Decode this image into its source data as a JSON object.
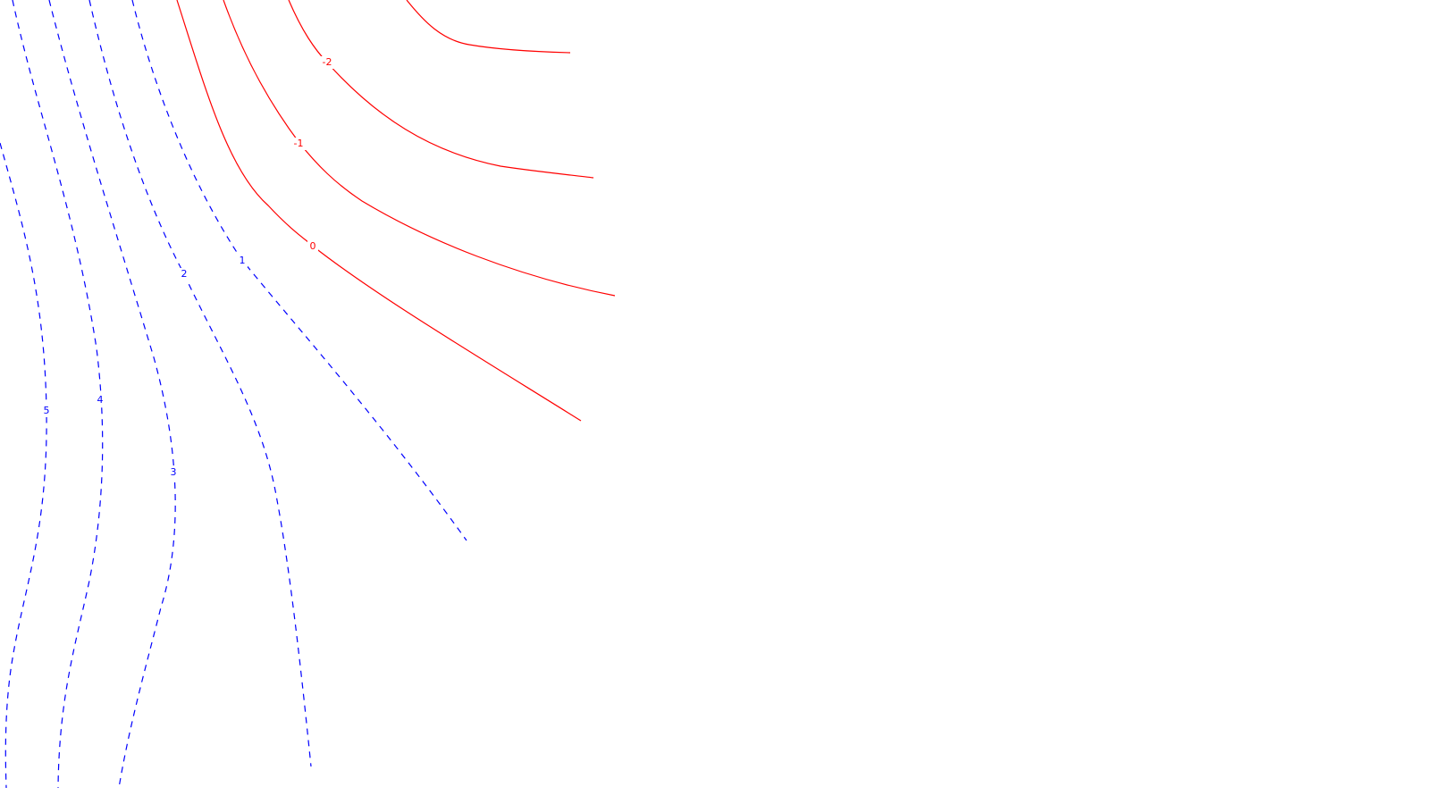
{
  "chart_data": {
    "type": "contour",
    "title": "",
    "xlabel": "",
    "ylabel": "",
    "grid": false,
    "legend": "none",
    "colors": {
      "positive": "#0000ff",
      "negative": "#ff0000",
      "zero": "#ff0000",
      "background": "#ffffff"
    },
    "levels": [
      {
        "value": 5,
        "label": "5",
        "sign": "positive",
        "style": "dashed"
      },
      {
        "value": 4,
        "label": "4",
        "sign": "positive",
        "style": "dashed"
      },
      {
        "value": 3,
        "label": "3",
        "sign": "positive",
        "style": "dashed"
      },
      {
        "value": 2,
        "label": "2",
        "sign": "positive",
        "style": "dashed"
      },
      {
        "value": 1,
        "label": "1",
        "sign": "positive",
        "style": "dashed"
      },
      {
        "value": 0,
        "label": "0",
        "sign": "zero",
        "style": "solid"
      },
      {
        "value": -1,
        "label": "-1",
        "sign": "negative",
        "style": "solid"
      },
      {
        "value": -2,
        "label": "-2",
        "sign": "negative",
        "style": "solid"
      },
      {
        "value": -3,
        "label": "",
        "sign": "negative",
        "style": "solid"
      }
    ]
  }
}
